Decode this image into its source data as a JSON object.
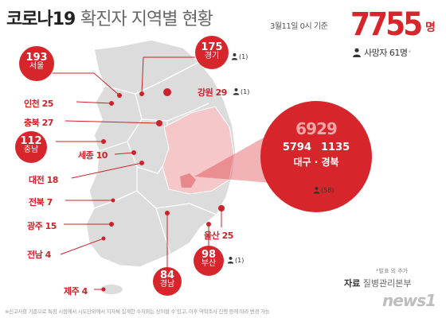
{
  "title": {
    "part1": "코로나19",
    "part2": "확진자 지역별 현황"
  },
  "basis": "3월11일 0시 기준",
  "total": {
    "number": "7755",
    "unit": "명"
  },
  "deaths_summary": {
    "label": "사망자 61명",
    "superscript": "*"
  },
  "regions": {
    "seoul": {
      "count": "193",
      "name": "서울"
    },
    "gyeonggi": {
      "count": "175",
      "name": "경기",
      "deaths": "(1)"
    },
    "incheon": {
      "label": "인천 25"
    },
    "gangwon": {
      "label": "강원 29",
      "deaths": "(1)"
    },
    "chungbuk": {
      "label": "충북 27"
    },
    "chungnam": {
      "count": "112",
      "name": "충남"
    },
    "sejong": {
      "label": "세종 10"
    },
    "daejeon": {
      "label": "대전 18"
    },
    "jeonbuk": {
      "label": "전북 7"
    },
    "gwangju": {
      "label": "광주 15"
    },
    "jeonnam": {
      "label": "전남 4"
    },
    "jeju": {
      "label": "제주 4"
    },
    "ulsan": {
      "label": "울산 25"
    },
    "busan": {
      "count": "98",
      "name": "부산",
      "deaths": "(1)"
    },
    "gyeongnam": {
      "count": "84",
      "name": "경남"
    },
    "daegu_gyeongbuk": {
      "total": "6929",
      "daegu": "5794",
      "gyeongbuk": "1135",
      "names": "대구 · 경북",
      "deaths": "(58)"
    }
  },
  "footnote_top": "*발표 외 추가",
  "source": {
    "prefix": "자료",
    "name": "질병관리본부"
  },
  "footnote": "※신고사항 기준으로 특정 시점에서 시도단위에서 지자체 집계한 수치와는 상이할 수 있고, 이후 역학조사 진행 등에 따라 변경 가능",
  "logo": "news1",
  "colors": {
    "accent": "#d7262b",
    "map_fill": "#dcdcdc",
    "map_stroke": "#ffffff",
    "daegu_area": "#f5c7c9"
  },
  "icons": [
    "person-icon"
  ]
}
